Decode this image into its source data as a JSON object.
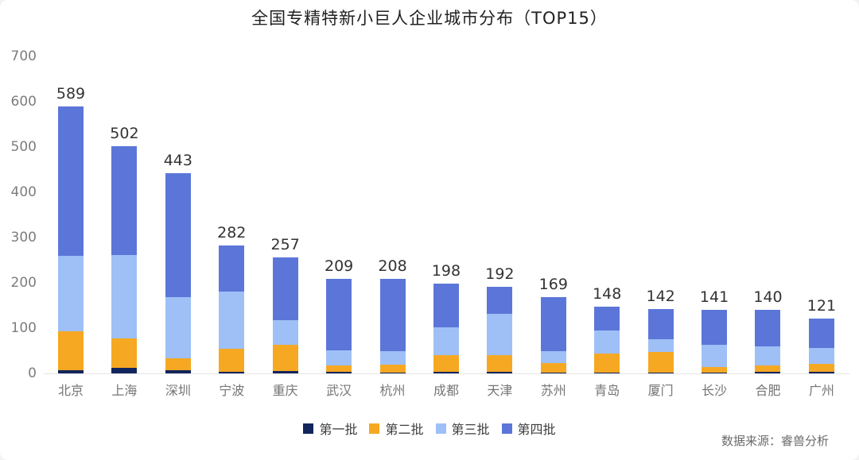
{
  "title": "全国专精特新小巨人企业城市分布（TOP15）",
  "source": "数据来源：睿兽分析",
  "colors": {
    "batch1": "#12255C",
    "batch2": "#F6A822",
    "bat3": "#9EC0F6",
    "batch4": "#5B76D8",
    "title_text": "#212121",
    "value_text": "#333333",
    "axis_text": "#7D7D7D",
    "baseline": "#E4E4E4"
  },
  "chart_data": {
    "type": "bar",
    "stacked": true,
    "title": "全国专精特新小巨人企业城市分布（TOP15）",
    "xlabel": "",
    "ylabel": "",
    "ylim": [
      0,
      700
    ],
    "yticks": [
      0,
      100,
      200,
      300,
      400,
      500,
      600,
      700
    ],
    "grid": false,
    "legend_position": "bottom",
    "categories": [
      "北京",
      "上海",
      "深圳",
      "宁波",
      "重庆",
      "武汉",
      "杭州",
      "成都",
      "天津",
      "苏州",
      "青岛",
      "厦门",
      "长沙",
      "合肥",
      "广州"
    ],
    "totals": [
      589,
      502,
      443,
      282,
      257,
      209,
      208,
      198,
      192,
      169,
      148,
      142,
      141,
      140,
      121
    ],
    "series": [
      {
        "name": "第一批",
        "color": "#12255C",
        "values": [
          7,
          12,
          7,
          3,
          5,
          3,
          2,
          3,
          4,
          2,
          2,
          2,
          2,
          3,
          3
        ]
      },
      {
        "name": "第二批",
        "color": "#F6A822",
        "values": [
          86,
          66,
          27,
          51,
          59,
          15,
          18,
          37,
          37,
          20,
          42,
          45,
          12,
          15,
          18
        ]
      },
      {
        "name": "第三批",
        "color": "#9EC0F6",
        "values": [
          167,
          183,
          134,
          127,
          54,
          33,
          29,
          62,
          90,
          27,
          51,
          29,
          50,
          42,
          35
        ]
      },
      {
        "name": "第四批",
        "color": "#5B76D8",
        "values": [
          329,
          241,
          275,
          101,
          139,
          158,
          159,
          96,
          61,
          120,
          53,
          66,
          77,
          80,
          65
        ]
      }
    ]
  }
}
